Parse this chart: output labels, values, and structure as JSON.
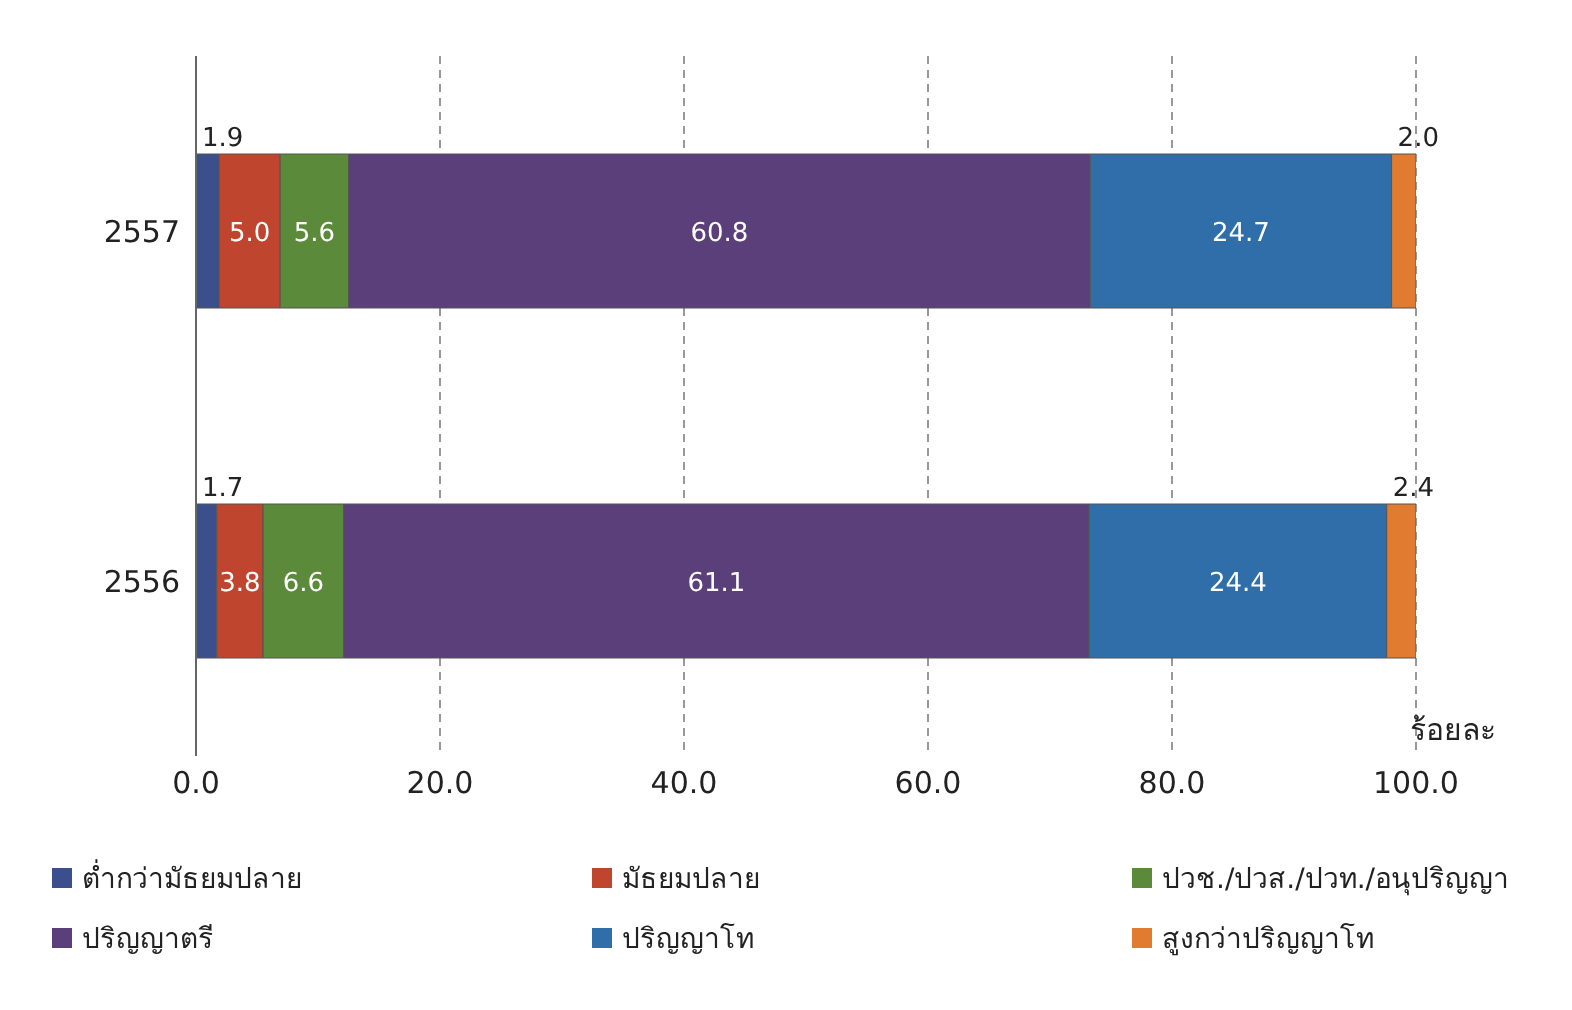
{
  "chart_data": {
    "type": "bar",
    "orientation": "horizontal",
    "stacked": true,
    "xlabel": "ร้อยละ",
    "categories": [
      "2557",
      "2556"
    ],
    "series": [
      {
        "name": "ต่ำกว่ามัธยมปลาย",
        "color": "#3b4f8c",
        "values": [
          1.9,
          1.7
        ],
        "value_labels": [
          "1.9",
          "1.7"
        ]
      },
      {
        "name": "มัธยมปลาย",
        "color": "#c0452e",
        "values": [
          5.0,
          3.8
        ],
        "value_labels": [
          "5.0",
          "3.8"
        ]
      },
      {
        "name": "ปวช./ปวส./ปวท./อนุปริญญา",
        "color": "#5a8a3a",
        "values": [
          5.6,
          6.6
        ],
        "value_labels": [
          "5.6",
          "6.6"
        ]
      },
      {
        "name": "ปริญญาตรี",
        "color": "#5b3f7a",
        "values": [
          60.8,
          61.1
        ],
        "value_labels": [
          "60.8",
          "61.1"
        ]
      },
      {
        "name": "ปริญญาโท",
        "color": "#2f6ea8",
        "values": [
          24.7,
          24.4
        ],
        "value_labels": [
          "24.7",
          "24.4"
        ]
      },
      {
        "name": "สูงกว่าปริญญาโท",
        "color": "#e07b30",
        "values": [
          2.0,
          2.4
        ],
        "value_labels": [
          "2.0",
          "2.4"
        ]
      }
    ],
    "xlim": [
      0,
      100
    ],
    "xticks": [
      {
        "value": 0,
        "label": "0.0"
      },
      {
        "value": 20,
        "label": "20.0"
      },
      {
        "value": 40,
        "label": "40.0"
      },
      {
        "value": 60,
        "label": "60.0"
      },
      {
        "value": 80,
        "label": "80.0"
      },
      {
        "value": 100,
        "label": "100.0"
      }
    ],
    "grid": "x",
    "legend": "bottom"
  }
}
